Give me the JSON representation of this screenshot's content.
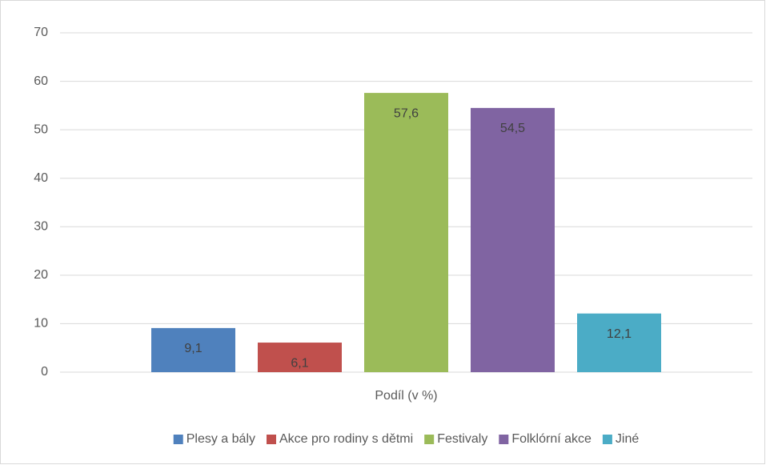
{
  "chart_data": {
    "type": "bar",
    "categories": [
      "Podíl (v %)"
    ],
    "series": [
      {
        "name": "Plesy a bály",
        "color": "#4f81bd",
        "values": [
          9.1
        ],
        "value_labels": [
          "9,1"
        ]
      },
      {
        "name": "Akce pro rodiny s dětmi",
        "color": "#c0504d",
        "values": [
          6.1
        ],
        "value_labels": [
          "6,1"
        ]
      },
      {
        "name": "Festivaly",
        "color": "#9bbb59",
        "values": [
          57.6
        ],
        "value_labels": [
          "57,6"
        ]
      },
      {
        "name": "Folklórní akce",
        "color": "#8064a2",
        "values": [
          54.5
        ],
        "value_labels": [
          "54,5"
        ]
      },
      {
        "name": "Jiné",
        "color": "#4bacc6",
        "values": [
          12.1
        ],
        "value_labels": [
          "12,1"
        ]
      }
    ],
    "ylim": [
      0,
      70
    ],
    "yticks": [
      0,
      10,
      20,
      30,
      40,
      50,
      60,
      70
    ],
    "grid": true,
    "legend": "bottom"
  }
}
